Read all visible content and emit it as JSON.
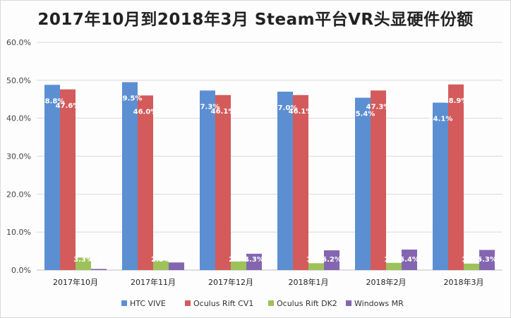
{
  "chart_data": {
    "type": "bar",
    "title": "2017年10月到2018年3月 Steam平台VR头显硬件份额",
    "categories": [
      "2017年10月",
      "2017年11月",
      "2017年12月",
      "2018年1月",
      "2018年2月",
      "2018年3月"
    ],
    "series": [
      {
        "name": "HTC VIVE",
        "color": "#5b8fd2",
        "values": [
          48.8,
          49.5,
          47.3,
          47.0,
          45.4,
          44.1
        ],
        "labels": [
          "48.8%",
          "49.5%",
          "47.3%",
          "47.0%",
          "45.4%",
          "44.1%"
        ]
      },
      {
        "name": "Oculus Rift CV1",
        "color": "#d45b5b",
        "values": [
          47.6,
          46.0,
          46.1,
          46.1,
          47.3,
          48.9
        ],
        "labels": [
          "47.6%",
          "46.0%",
          "46.1%",
          "46.1%",
          "47.3%",
          "48.9%"
        ]
      },
      {
        "name": "Oculus Rift DK2",
        "color": "#9dc25a",
        "values": [
          3.3,
          2.5,
          2.3,
          1.8,
          1.9,
          1.7
        ],
        "labels": [
          "3.3%",
          "2.5%",
          "2.3%",
          "1.8%",
          "1.9%",
          "1.7%"
        ]
      },
      {
        "name": "Windows MR",
        "color": "#8466b0",
        "values": [
          0.3,
          2.0,
          4.3,
          5.2,
          5.4,
          5.3
        ],
        "labels": [
          "0.3%",
          "2.0%",
          "4.3%",
          "5.2%",
          "5.4%",
          "5.3%"
        ]
      }
    ],
    "ylim": [
      0,
      60
    ],
    "yticks": [
      "0.0%",
      "10.0%",
      "20.0%",
      "30.0%",
      "40.0%",
      "50.0%",
      "60.0%"
    ],
    "xlabel": "",
    "ylabel": "",
    "grid": true,
    "legend": "bottom"
  }
}
